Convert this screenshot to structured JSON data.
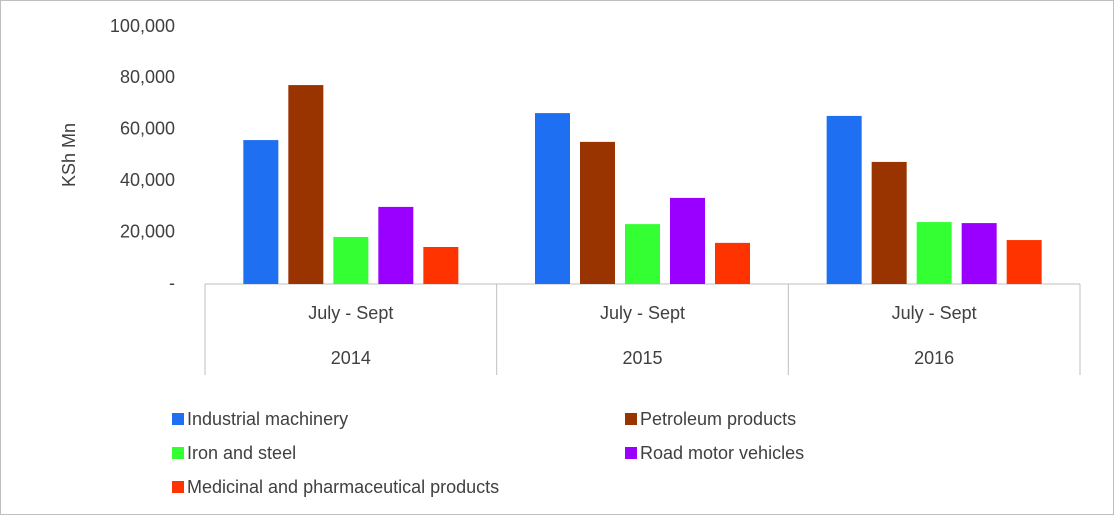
{
  "chart_data": {
    "type": "bar",
    "y_label": "KSh Mn",
    "categories": [
      "2014",
      "2015",
      "2016"
    ],
    "sublabels": [
      "July - Sept",
      "July - Sept",
      "July - Sept"
    ],
    "series": [
      {
        "name": "Industrial machinery",
        "color": "#1f6ff2",
        "values": [
          56000,
          66500,
          65400
        ]
      },
      {
        "name": "Petroleum products",
        "color": "#993300",
        "values": [
          77400,
          55300,
          47500
        ]
      },
      {
        "name": "Iron and steel",
        "color": "#33ff33",
        "values": [
          18300,
          23300,
          24100
        ]
      },
      {
        "name": "Road motor vehicles",
        "color": "#9900ff",
        "values": [
          30000,
          33500,
          23700
        ]
      },
      {
        "name": "Medicinal and pharmaceutical products",
        "color": "#ff3300",
        "values": [
          14400,
          16000,
          17100
        ]
      }
    ],
    "ylim": [
      0,
      100000
    ],
    "yticks": [
      {
        "value": 0,
        "label": "-"
      },
      {
        "value": 20000,
        "label": "20,000"
      },
      {
        "value": 40000,
        "label": "40,000"
      },
      {
        "value": 60000,
        "label": "60,000"
      },
      {
        "value": 80000,
        "label": "80,000"
      },
      {
        "value": 100000,
        "label": "100,000"
      }
    ],
    "grid": false,
    "legend": "bottom"
  }
}
